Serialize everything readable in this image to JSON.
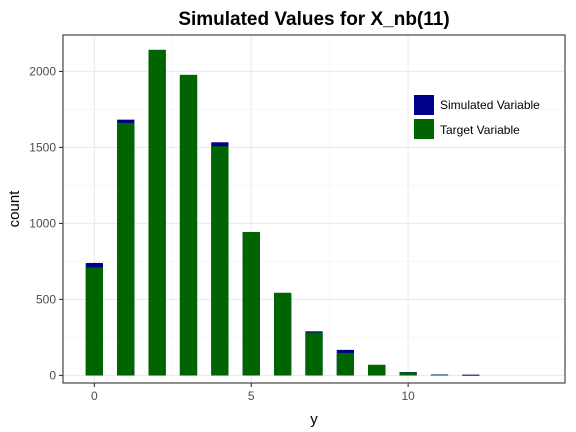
{
  "chart_data": {
    "type": "bar",
    "title": "Simulated Values for X_nb(11)",
    "xlabel": "y",
    "ylabel": "count",
    "xlim": [
      -1,
      15
    ],
    "ylim": [
      -50,
      2240
    ],
    "x_ticks": [
      0,
      5,
      10
    ],
    "y_ticks": [
      0,
      500,
      1000,
      1500,
      2000
    ],
    "grid": true,
    "legend_position": "top-right",
    "x": [
      0,
      1,
      2,
      3,
      4,
      5,
      6,
      7,
      8,
      9,
      10,
      11,
      12
    ],
    "series": [
      {
        "name": "Simulated Variable",
        "color": "#00008B",
        "values": [
          740,
          1683,
          2142,
          1970,
          1534,
          940,
          538,
          290,
          168,
          68,
          22,
          6,
          5
        ]
      },
      {
        "name": "Target Variable",
        "color": "#006400",
        "values": [
          710,
          1662,
          2142,
          1978,
          1508,
          944,
          544,
          282,
          148,
          70,
          20,
          4,
          1
        ]
      }
    ]
  }
}
